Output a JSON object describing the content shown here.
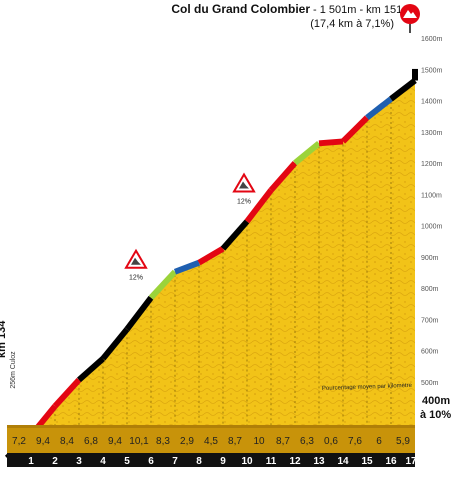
{
  "header": {
    "title": "Col du Grand Colombier",
    "summit_info": "- 1 501m - km 151,5",
    "climb_info": "(17,4 km à 7,1%)"
  },
  "start_label": {
    "altitude": "256m Culoz",
    "km": "km 134"
  },
  "base_label": {
    "altitude": "400m",
    "slope": "à 10%"
  },
  "legend_note": "Pourcentage moyen par kilomètre",
  "category_markers": [
    {
      "name": "mountain-sign-left",
      "after_km": 6,
      "grade_label": "12%"
    },
    {
      "name": "mountain-sign-mid",
      "after_km": 10,
      "grade_label": "12%"
    }
  ],
  "colors": {
    "fill": "#f2c318",
    "fill_texture": "#d9a30c",
    "base_block": "#c8930a",
    "axis_strip": "#111111",
    "summit_sign": "#e30613",
    "segment_colors": [
      "#000000",
      "#e30613",
      "#e30613",
      "#000000",
      "#000000",
      "#000000",
      "#9bd33a",
      "#1f5fb0",
      "#e30613",
      "#000000",
      "#e30613",
      "#e30613",
      "#9bd33a",
      "#e30613",
      "#e30613",
      "#1f5fb0",
      "#000000"
    ]
  },
  "chart_data": {
    "type": "area",
    "title": "Col du Grand Colombier",
    "xlabel": "km",
    "ylabel": "m",
    "km_ticks": [
      "1",
      "2",
      "3",
      "4",
      "5",
      "6",
      "7",
      "8",
      "9",
      "10",
      "11",
      "12",
      "13",
      "14",
      "15",
      "16",
      "17"
    ],
    "gradients": [
      "7,2",
      "9,4",
      "8,4",
      "6,8",
      "9,4",
      "10,1",
      "8,3",
      "2,9",
      "4,5",
      "8,7",
      "10",
      "8,7",
      "6,3",
      "0,6",
      "7,6",
      "6",
      "5,9"
    ],
    "profile_x_km": [
      0,
      1,
      2,
      3,
      4,
      5,
      6,
      7,
      8,
      9,
      10,
      11,
      12,
      13,
      14,
      15,
      16,
      17,
      17.4
    ],
    "profile_elevation_m": [
      256,
      328,
      422,
      506,
      574,
      668,
      769,
      852,
      881,
      926,
      1013,
      1113,
      1200,
      1263,
      1269,
      1345,
      1405,
      1464,
      1501
    ],
    "ylim": [
      400,
      1600
    ],
    "yticks": [
      "400m",
      "500m",
      "600m",
      "700m",
      "800m",
      "900m",
      "1000m",
      "1100m",
      "1200m",
      "1300m",
      "1400m",
      "1500m",
      "1600m"
    ],
    "ytick_values": [
      400,
      500,
      600,
      700,
      800,
      900,
      1000,
      1100,
      1200,
      1300,
      1400,
      1500,
      1600
    ],
    "grid": true
  }
}
